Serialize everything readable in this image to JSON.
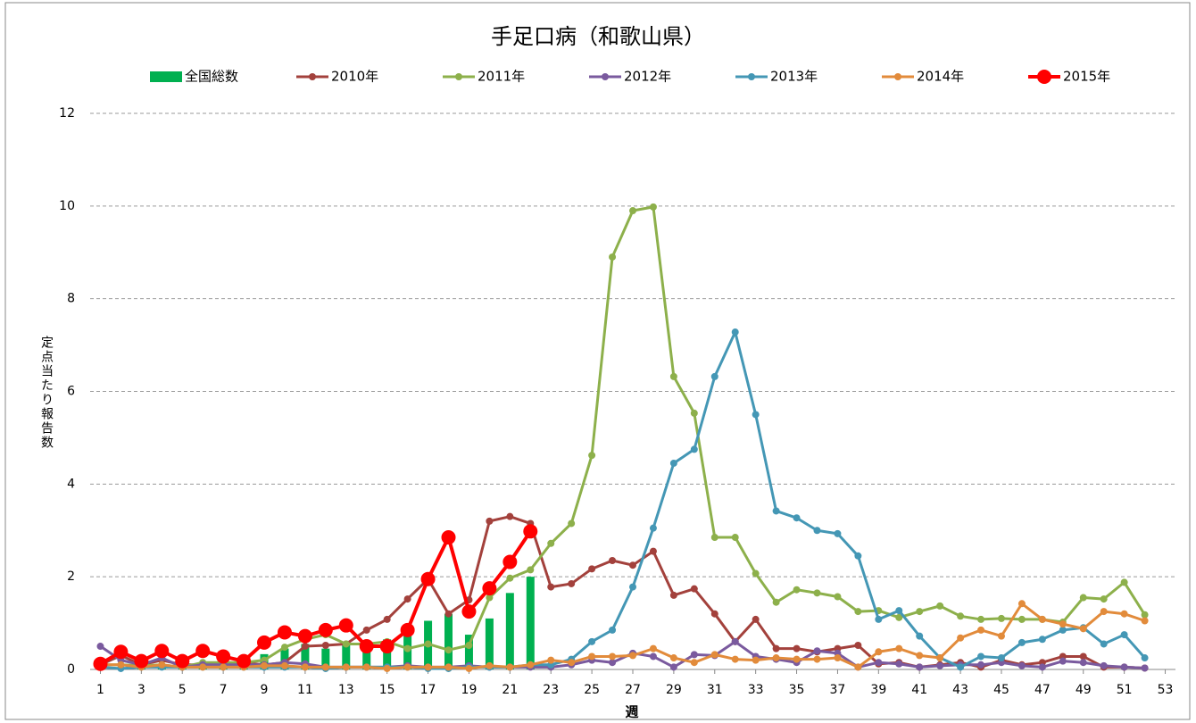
{
  "chart_data": {
    "type": "line",
    "title": "手足口病（和歌山県）",
    "x_label": "週",
    "y_label": "定点当たり報告数",
    "x": [
      1,
      2,
      3,
      4,
      5,
      6,
      7,
      8,
      9,
      10,
      11,
      12,
      13,
      14,
      15,
      16,
      17,
      18,
      19,
      20,
      21,
      22,
      23,
      24,
      25,
      26,
      27,
      28,
      29,
      30,
      31,
      32,
      33,
      34,
      35,
      36,
      37,
      38,
      39,
      40,
      41,
      42,
      43,
      44,
      45,
      46,
      47,
      48,
      49,
      50,
      51,
      52
    ],
    "xlim": [
      0.5,
      53.5
    ],
    "xticks": [
      1,
      3,
      5,
      7,
      9,
      11,
      13,
      15,
      17,
      19,
      21,
      23,
      25,
      27,
      29,
      31,
      33,
      35,
      37,
      39,
      41,
      43,
      45,
      47,
      49,
      51,
      53
    ],
    "ylim": [
      0,
      12
    ],
    "yticks": [
      0,
      2,
      4,
      6,
      8,
      10,
      12
    ],
    "grid": true,
    "legend": "top",
    "series": [
      {
        "name": "全国総数",
        "type": "bar",
        "color": "#00b050",
        "values": [
          0.05,
          0.05,
          0.05,
          0.05,
          0.05,
          0.1,
          0.1,
          0.15,
          0.33,
          0.45,
          0.55,
          0.45,
          0.6,
          0.6,
          0.65,
          0.75,
          1.05,
          1.2,
          0.75,
          1.1,
          1.65,
          2.0,
          null,
          null,
          null,
          null,
          null,
          null,
          null,
          null,
          null,
          null,
          null,
          null,
          null,
          null,
          null,
          null,
          null,
          null,
          null,
          null,
          null,
          null,
          null,
          null,
          null,
          null,
          null,
          null,
          null,
          null
        ]
      },
      {
        "name": "2010年",
        "type": "line",
        "color": "#a3413c",
        "values": [
          0.1,
          0.3,
          0.1,
          0.2,
          0.1,
          0.1,
          0.1,
          0.15,
          0.1,
          0.15,
          0.5,
          0.52,
          0.55,
          0.85,
          1.08,
          1.52,
          1.95,
          1.2,
          1.5,
          3.2,
          3.3,
          3.15,
          1.78,
          1.85,
          2.17,
          2.35,
          2.25,
          2.55,
          1.6,
          1.74,
          1.2,
          0.6,
          1.08,
          0.45,
          0.45,
          0.38,
          0.45,
          0.52,
          0.12,
          0.15,
          0.05,
          0.1,
          0.15,
          0.05,
          0.2,
          0.1,
          0.15,
          0.28,
          0.28,
          0.05,
          0.05,
          0.03
        ]
      },
      {
        "name": "2011年",
        "type": "line",
        "color": "#8db04b",
        "values": [
          0.1,
          0.1,
          0.08,
          0.1,
          0.05,
          0.15,
          0.15,
          0.15,
          0.2,
          0.48,
          0.65,
          0.75,
          0.55,
          0.55,
          0.6,
          0.45,
          0.55,
          0.42,
          0.52,
          1.55,
          1.97,
          2.15,
          2.72,
          3.15,
          4.62,
          8.9,
          9.9,
          9.98,
          6.32,
          5.53,
          2.85,
          2.85,
          2.07,
          1.45,
          1.72,
          1.65,
          1.57,
          1.25,
          1.27,
          1.12,
          1.25,
          1.37,
          1.15,
          1.08,
          1.1,
          1.08,
          1.08,
          1.02,
          1.55,
          1.52,
          1.88,
          1.18
        ]
      },
      {
        "name": "2012年",
        "type": "line",
        "color": "#7a5a9e",
        "values": [
          0.5,
          0.2,
          0.1,
          0.25,
          0.05,
          0.1,
          0.1,
          0.1,
          0.1,
          0.15,
          0.12,
          0.05,
          0.05,
          0.05,
          0.05,
          0.08,
          0.05,
          0.05,
          0.08,
          0.05,
          0.05,
          0.05,
          0.05,
          0.1,
          0.2,
          0.15,
          0.35,
          0.28,
          0.05,
          0.32,
          0.3,
          0.6,
          0.28,
          0.22,
          0.15,
          0.4,
          0.35,
          0.05,
          0.15,
          0.12,
          0.05,
          0.08,
          0.1,
          0.1,
          0.15,
          0.08,
          0.05,
          0.18,
          0.15,
          0.08,
          0.05,
          0.03
        ]
      },
      {
        "name": "2013年",
        "type": "line",
        "color": "#4497b5",
        "values": [
          0.05,
          0.02,
          0.05,
          0.05,
          0.05,
          0.05,
          0.05,
          0.05,
          0.05,
          0.05,
          0.05,
          0.02,
          0.05,
          0.05,
          0.05,
          0.05,
          0.02,
          0.02,
          0.05,
          0.05,
          0.05,
          0.1,
          0.1,
          0.22,
          0.6,
          0.85,
          1.78,
          3.05,
          4.45,
          4.75,
          6.32,
          7.28,
          5.5,
          3.42,
          3.27,
          3.0,
          2.93,
          2.45,
          1.08,
          1.27,
          0.72,
          0.25,
          0.05,
          0.28,
          0.25,
          0.58,
          0.65,
          0.85,
          0.9,
          0.55,
          0.75,
          0.25
        ]
      },
      {
        "name": "2014年",
        "type": "line",
        "color": "#e28b3b",
        "values": [
          0.1,
          0.1,
          0.05,
          0.1,
          0.05,
          0.05,
          0.05,
          0.05,
          0.08,
          0.08,
          0.05,
          0.05,
          0.05,
          0.05,
          0.02,
          0.05,
          0.05,
          0.05,
          0.02,
          0.08,
          0.05,
          0.1,
          0.2,
          0.15,
          0.28,
          0.28,
          0.3,
          0.45,
          0.25,
          0.15,
          0.32,
          0.22,
          0.2,
          0.25,
          0.22,
          0.22,
          0.25,
          0.05,
          0.38,
          0.45,
          0.3,
          0.25,
          0.68,
          0.85,
          0.72,
          1.42,
          1.08,
          0.98,
          0.88,
          1.25,
          1.2,
          1.05
        ]
      },
      {
        "name": "2015年",
        "type": "line",
        "color": "#ff0000",
        "values": [
          0.12,
          0.38,
          0.18,
          0.4,
          0.18,
          0.4,
          0.28,
          0.18,
          0.58,
          0.8,
          0.72,
          0.85,
          0.95,
          0.5,
          0.5,
          0.85,
          1.95,
          2.85,
          1.25,
          1.75,
          2.32,
          2.98,
          null,
          null,
          null,
          null,
          null,
          null,
          null,
          null,
          null,
          null,
          null,
          null,
          null,
          null,
          null,
          null,
          null,
          null,
          null,
          null,
          null,
          null,
          null,
          null,
          null,
          null,
          null,
          null,
          null,
          null
        ]
      }
    ]
  }
}
